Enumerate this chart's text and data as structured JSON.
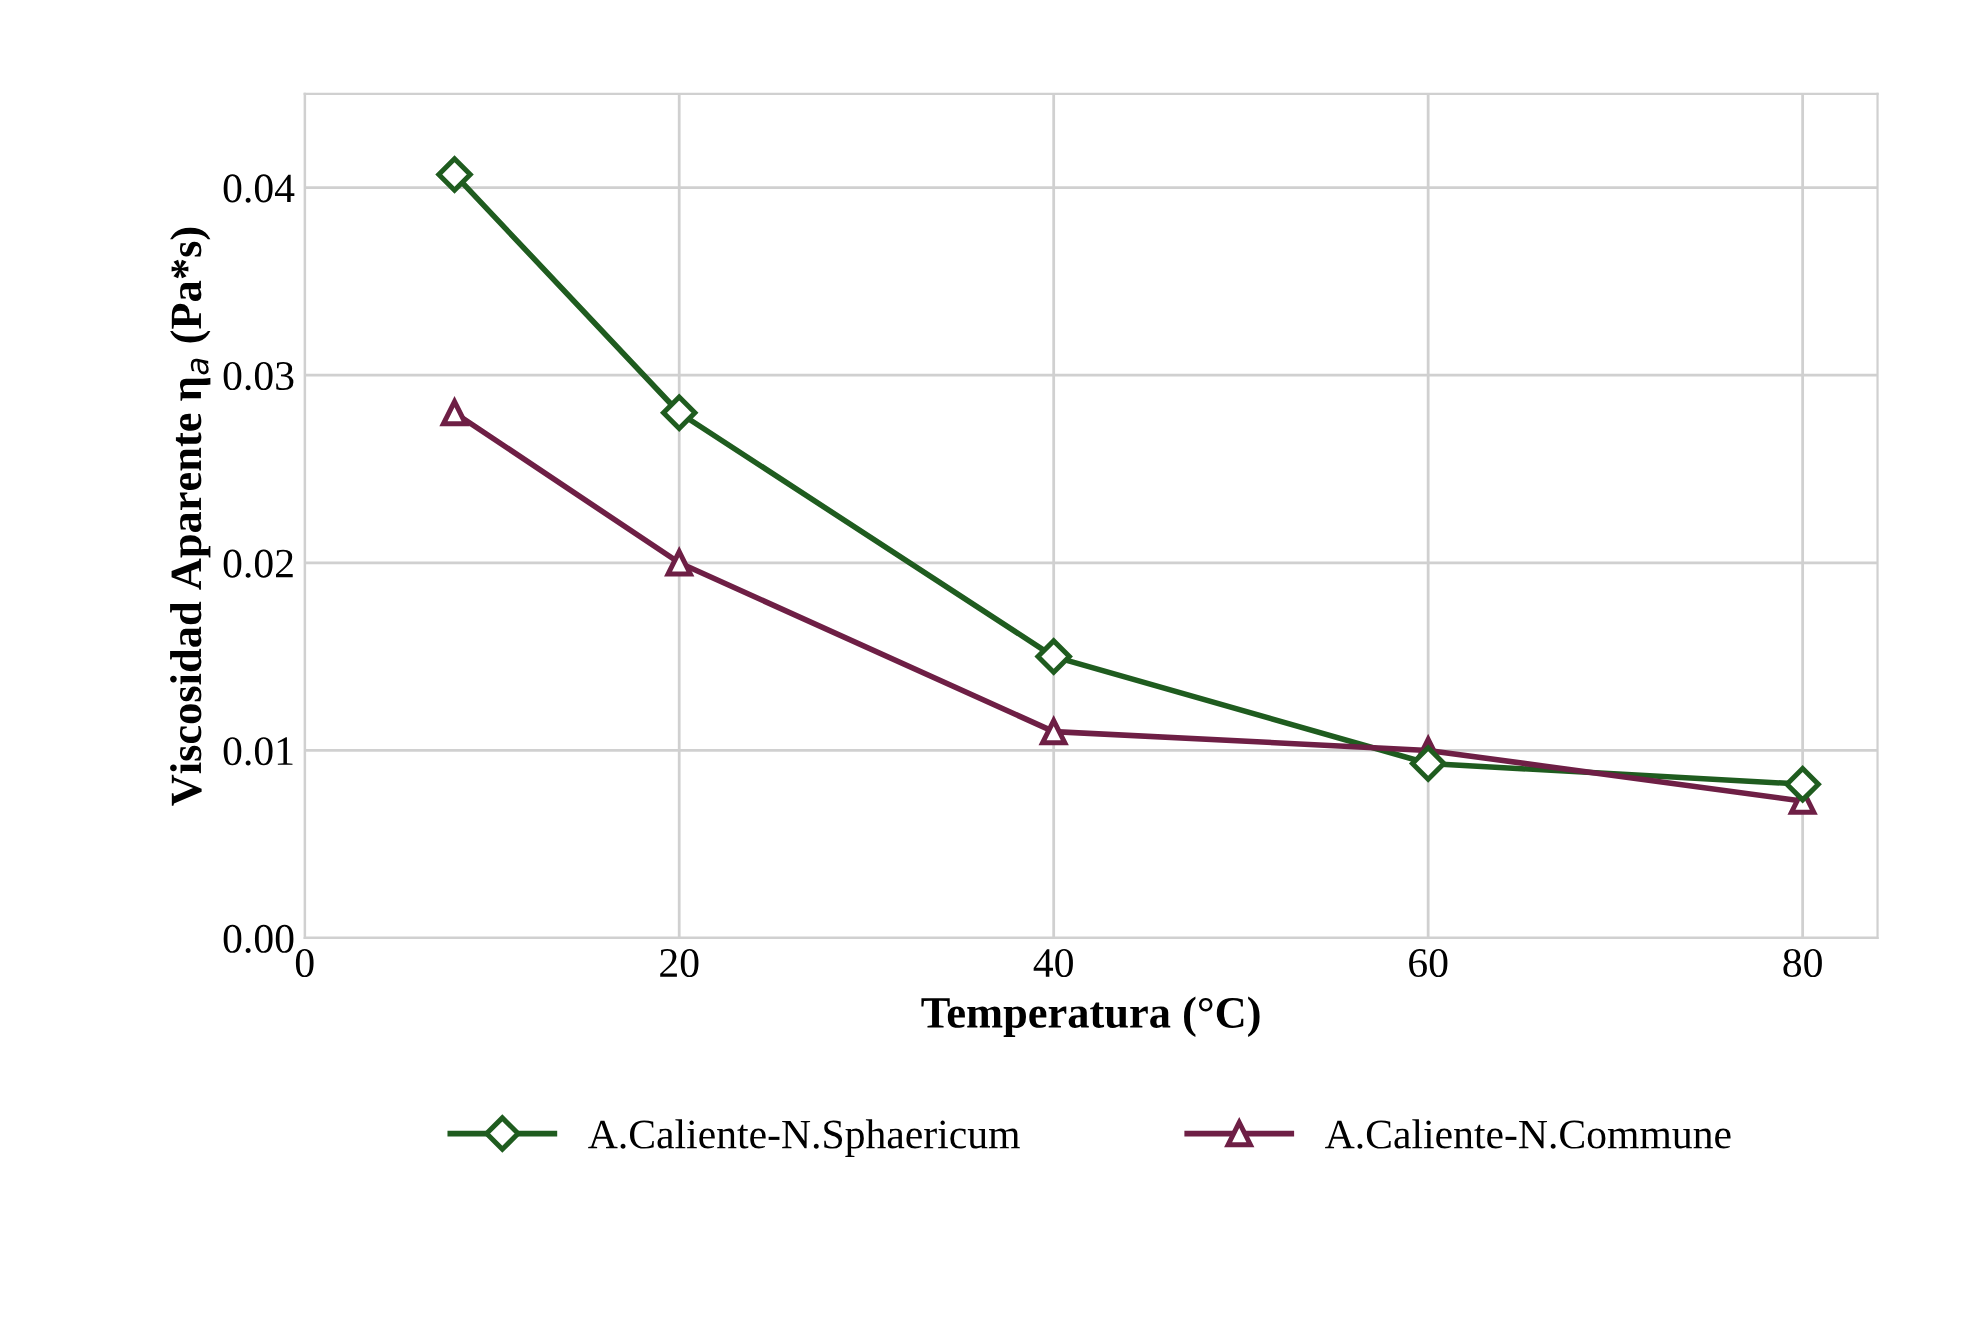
{
  "chart_data": {
    "type": "line",
    "xlabel": "Temperatura (°C)",
    "ylabel": "Viscosidad Aparente η$_{a}$ (Pa*s)",
    "x": [
      8,
      20,
      40,
      60,
      80
    ],
    "series": [
      {
        "name": "A.Caliente-N.Sphaericum",
        "color": "#1f5c1f",
        "marker": "diamond",
        "values": [
          0.0407,
          0.028,
          0.015,
          0.0093,
          0.0082
        ]
      },
      {
        "name": "A.Caliente-N.Commune",
        "color": "#6e1f45",
        "marker": "triangle",
        "values": [
          0.028,
          0.02,
          0.011,
          0.01,
          0.0073
        ]
      }
    ],
    "xlim": [
      0,
      84
    ],
    "xticks": [
      0,
      20,
      40,
      60,
      80
    ],
    "ylim": [
      0,
      0.045
    ],
    "yticks": [
      {
        "value": 0,
        "label": "0.00"
      },
      {
        "value": 0.01,
        "label": "0.01"
      },
      {
        "value": 0.02,
        "label": "0.02"
      },
      {
        "value": 0.03,
        "label": "0.03"
      },
      {
        "value": 0.04,
        "label": "0.04"
      }
    ],
    "grid": true,
    "legend": "bottom",
    "line_style": "solid"
  }
}
